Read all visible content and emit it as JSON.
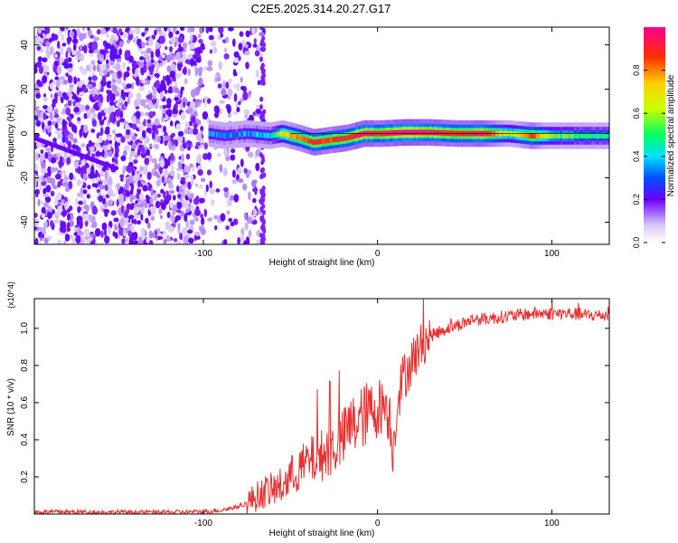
{
  "title": "C2E5.2025.314.20.27.G17",
  "chart_data": [
    {
      "type": "heatmap",
      "xlabel": "Height of straight line (km)",
      "ylabel": "Frequency (Hz)",
      "xlim": [
        -197,
        133
      ],
      "ylim": [
        -50,
        48
      ],
      "xticks": [
        -100,
        0,
        100
      ],
      "yticks": [
        -40,
        -20,
        0,
        20,
        40
      ],
      "colorbar": {
        "label": "Normalized spectral amplitude",
        "range": [
          0,
          1
        ],
        "ticks": [
          "0.0",
          "0.2",
          "0.4",
          "0.6",
          "0.8"
        ]
      },
      "noise_region": [
        -197,
        -65
      ],
      "ridge": [
        {
          "x": -97,
          "f": 0,
          "amp": 0.35
        },
        {
          "x": -88,
          "f": -1,
          "amp": 0.3
        },
        {
          "x": -75,
          "f": 0,
          "amp": 0.35
        },
        {
          "x": -62,
          "f": -1,
          "amp": 0.4
        },
        {
          "x": -55,
          "f": 0,
          "amp": 0.7
        },
        {
          "x": -45,
          "f": -2,
          "amp": 0.8
        },
        {
          "x": -37,
          "f": -4,
          "amp": 0.9
        },
        {
          "x": -28,
          "f": -3,
          "amp": 0.85
        },
        {
          "x": -18,
          "f": -2,
          "amp": 0.9
        },
        {
          "x": -8,
          "f": 0,
          "amp": 0.95
        },
        {
          "x": 2,
          "f": 0,
          "amp": 0.9
        },
        {
          "x": 15,
          "f": 0.5,
          "amp": 1.0
        },
        {
          "x": 30,
          "f": 0.5,
          "amp": 0.95
        },
        {
          "x": 45,
          "f": 0,
          "amp": 0.9
        },
        {
          "x": 60,
          "f": 0,
          "amp": 0.95
        },
        {
          "x": 75,
          "f": 0,
          "amp": 0.6
        },
        {
          "x": 88,
          "f": -1,
          "amp": 0.85
        },
        {
          "x": 100,
          "f": -1,
          "amp": 0.6
        },
        {
          "x": 115,
          "f": -1,
          "amp": 0.5
        },
        {
          "x": 133,
          "f": -1,
          "amp": 0.5
        }
      ]
    },
    {
      "type": "line",
      "xlabel": "Height of straight line (km)",
      "ylabel": "SNR (10 * v/v)",
      "multiplier": "(x10^4)",
      "xlim": [
        -197,
        133
      ],
      "ylim": [
        0,
        1.16
      ],
      "xticks": [
        -100,
        0,
        100
      ],
      "yticks": [
        0.2,
        0.4,
        0.6,
        0.8,
        1.0
      ],
      "series": [
        {
          "name": "SNR",
          "color": "#e83030",
          "x": [
            -197,
            -180,
            -160,
            -140,
            -120,
            -100,
            -90,
            -80,
            -75,
            -70,
            -65,
            -60,
            -55,
            -50,
            -45,
            -40,
            -35,
            -30,
            -25,
            -20,
            -17,
            -14,
            -10,
            -5,
            0,
            4,
            7,
            9,
            10,
            12,
            15,
            20,
            25,
            30,
            40,
            50,
            55,
            60,
            70,
            80,
            90,
            100,
            110,
            120,
            133
          ],
          "values": [
            0.01,
            0.012,
            0.01,
            0.011,
            0.01,
            0.012,
            0.02,
            0.04,
            0.06,
            0.09,
            0.12,
            0.13,
            0.15,
            0.2,
            0.24,
            0.28,
            0.3,
            0.33,
            0.36,
            0.4,
            0.46,
            0.48,
            0.51,
            0.55,
            0.57,
            0.6,
            0.52,
            0.33,
            0.48,
            0.65,
            0.74,
            0.83,
            0.91,
            0.96,
            1.0,
            1.03,
            1.05,
            1.05,
            1.06,
            1.07,
            1.08,
            1.08,
            1.08,
            1.07,
            1.07
          ]
        }
      ]
    }
  ]
}
